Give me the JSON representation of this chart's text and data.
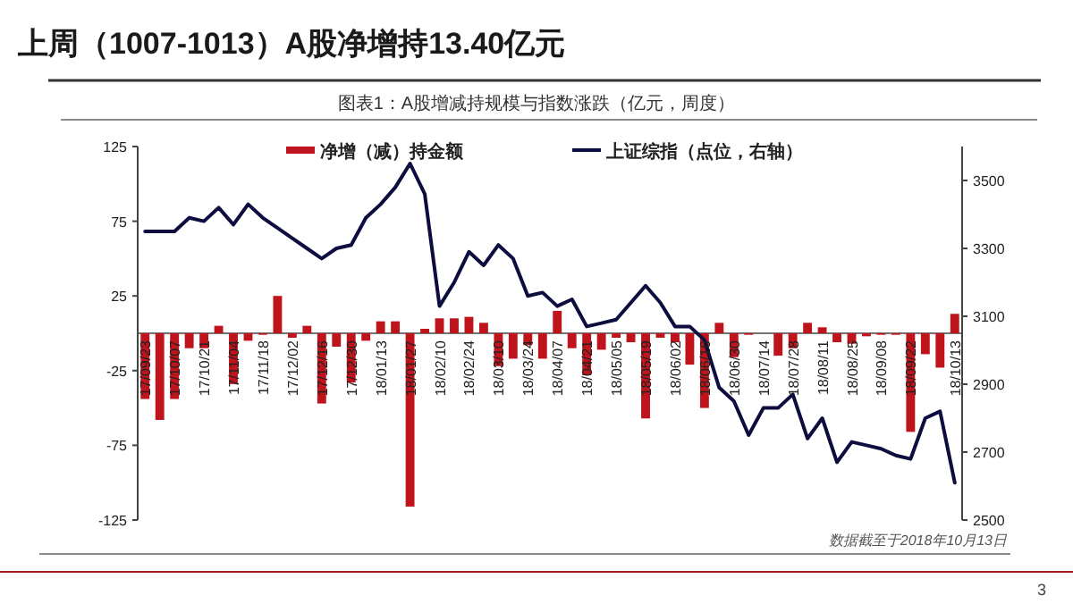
{
  "chart_data": {
    "type": "bar",
    "title": "上周（1007-1013）A股净增持13.40亿元",
    "subtitle": "图表1：A股增减持规模与指数涨跌（亿元，周度）",
    "categories": [
      "17/09/23",
      null,
      "17/10/07",
      null,
      "17/10/21",
      null,
      "17/11/04",
      null,
      "17/11/18",
      null,
      "17/12/02",
      null,
      "17/12/16",
      null,
      "17/12/30",
      null,
      "18/01/13",
      null,
      "18/01/27",
      null,
      "18/02/10",
      null,
      "18/02/24",
      null,
      "18/03/10",
      null,
      "18/03/24",
      null,
      "18/04/07",
      null,
      "18/04/21",
      null,
      "18/05/05",
      null,
      "18/05/19",
      null,
      "18/06/02",
      null,
      "18/06/16",
      null,
      "18/06/30",
      null,
      "18/07/14",
      null,
      "18/07/28",
      null,
      "18/08/11",
      null,
      "18/08/25",
      null,
      "18/09/08",
      null,
      "18/09/22",
      null,
      null,
      "18/10/13"
    ],
    "series": [
      {
        "name": "净增（减）持金额",
        "color": "#c0141c",
        "values": [
          -44,
          -58,
          -44,
          -10,
          -10,
          5,
          -34,
          -5,
          -1,
          25,
          -3,
          5,
          -47,
          -9,
          -33,
          -5,
          8,
          8,
          -116,
          3,
          10,
          10,
          11,
          7,
          -22,
          -17,
          -8,
          -17,
          15,
          -10,
          -28,
          -11,
          -3,
          -6,
          -57,
          -3,
          -6,
          -21,
          -50,
          7,
          -16,
          -1,
          0,
          -15,
          -10,
          7,
          4,
          -6,
          -7,
          -2,
          -1,
          -1,
          -66,
          -14,
          -23,
          13
        ]
      },
      {
        "name": "上证综指（点位，右轴）",
        "type": "line",
        "axis": "y2",
        "color": "#0d0d3f",
        "values": [
          3350,
          3350,
          3350,
          3390,
          3380,
          3420,
          3370,
          3430,
          3390,
          3360,
          3330,
          3300,
          3270,
          3300,
          3310,
          3390,
          3430,
          3480,
          3550,
          3460,
          3130,
          3200,
          3290,
          3250,
          3310,
          3270,
          3160,
          3170,
          3130,
          3150,
          3070,
          3080,
          3090,
          3140,
          3190,
          3140,
          3070,
          3070,
          3030,
          2890,
          2850,
          2750,
          2830,
          2830,
          2870,
          2740,
          2800,
          2670,
          2730,
          2720,
          2710,
          2690,
          2680,
          2800,
          2820,
          2610
        ]
      }
    ],
    "ylim": [
      -125,
      125
    ],
    "yticks": [
      -125,
      -75,
      -25,
      25,
      75,
      125
    ],
    "y2lim": [
      2500,
      3600
    ],
    "y2ticks": [
      2500,
      2700,
      2900,
      3100,
      3300,
      3500
    ],
    "legend": "top",
    "grid": false,
    "annotations": [
      "数据截至于2018年10月13日",
      "3"
    ]
  }
}
